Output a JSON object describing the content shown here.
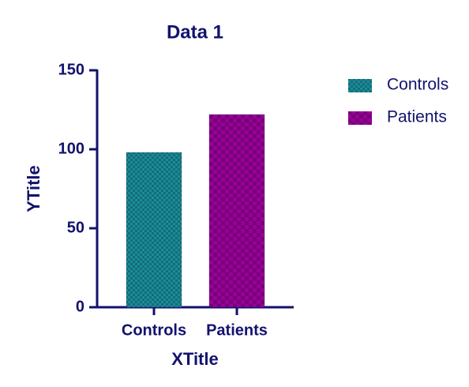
{
  "chart_data": {
    "type": "bar",
    "title": "Data 1",
    "x_label": "XTitle",
    "y_label": "YTitle",
    "categories": [
      "Controls",
      "Patients"
    ],
    "values": [
      98,
      122
    ],
    "colors": [
      "#1a8c99",
      "#990099"
    ],
    "ylim": [
      0,
      150
    ],
    "yticks": [
      0,
      50,
      100,
      150
    ],
    "legend": "right"
  }
}
